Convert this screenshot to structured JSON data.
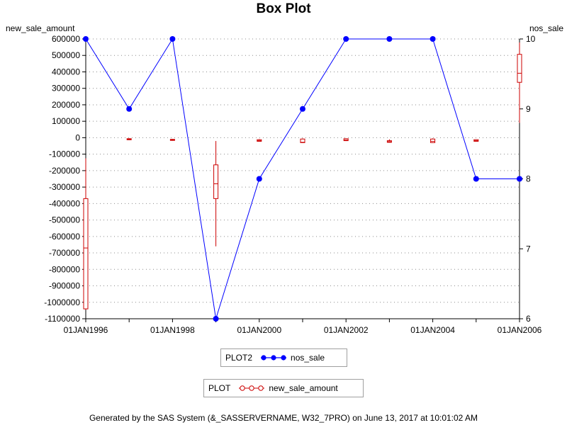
{
  "chart_data": {
    "type": "box",
    "title": "Box Plot",
    "left_axis_label": "new_sale_amount",
    "right_axis_label": "nos_sale",
    "x_tick_labels": [
      "01JAN1996",
      "01JAN1998",
      "01JAN2000",
      "01JAN2002",
      "01JAN2004",
      "01JAN2006"
    ],
    "x_categories": [
      "01JAN1996",
      "01JAN1997",
      "01JAN1998",
      "01JAN1999",
      "01JAN2000",
      "01JAN2001",
      "01JAN2002",
      "01JAN2003",
      "01JAN2004",
      "01JAN2005",
      "01JAN2006"
    ],
    "left_ylim": [
      -1100000,
      600000
    ],
    "left_ticks": [
      600000,
      500000,
      400000,
      300000,
      200000,
      100000,
      0,
      -100000,
      -200000,
      -300000,
      -400000,
      -500000,
      -600000,
      -700000,
      -800000,
      -900000,
      -1000000,
      -1100000
    ],
    "right_ylim": [
      6,
      10
    ],
    "right_ticks": [
      10,
      9,
      8,
      7,
      6
    ],
    "grid": true,
    "colors": {
      "line": "#0000ff",
      "box": "#cc0000",
      "grid": "#8c8c8c"
    },
    "series": [
      {
        "name": "nos_sale",
        "axis": "right",
        "kind": "line",
        "x": [
          "01JAN1996",
          "01JAN1997",
          "01JAN1998",
          "01JAN1999",
          "01JAN2000",
          "01JAN2001",
          "01JAN2002",
          "01JAN2003",
          "01JAN2004",
          "01JAN2005",
          "01JAN2006"
        ],
        "values": [
          10,
          9,
          10,
          6,
          8,
          9,
          10,
          10,
          10,
          8,
          8
        ]
      },
      {
        "name": "new_sale_amount",
        "axis": "left",
        "kind": "box",
        "boxes": [
          {
            "x": "01JAN1996",
            "min": -1045000,
            "q1": -1040000,
            "median": -670000,
            "q3": -370000,
            "max": -125000
          },
          {
            "x": "01JAN1997",
            "min": -14000,
            "q1": -12000,
            "median": -9000,
            "q3": -6000,
            "max": -4000
          },
          {
            "x": "01JAN1998",
            "min": -18000,
            "q1": -16000,
            "median": -13000,
            "q3": -10000,
            "max": -8000
          },
          {
            "x": "01JAN1999",
            "min": -660000,
            "q1": -370000,
            "median": -280000,
            "q3": -165000,
            "max": -20000
          },
          {
            "x": "01JAN2000",
            "min": -24000,
            "q1": -22000,
            "median": -18000,
            "q3": -12000,
            "max": -8000
          },
          {
            "x": "01JAN2001",
            "min": -32000,
            "q1": -30000,
            "median": -28000,
            "q3": -8000,
            "max": -4000
          },
          {
            "x": "01JAN2002",
            "min": -20000,
            "q1": -18000,
            "median": -14000,
            "q3": -6000,
            "max": -4000
          },
          {
            "x": "01JAN2003",
            "min": -30000,
            "q1": -28000,
            "median": -24000,
            "q3": -18000,
            "max": -10000
          },
          {
            "x": "01JAN2004",
            "min": -32000,
            "q1": -30000,
            "median": -22000,
            "q3": -8000,
            "max": -4000
          },
          {
            "x": "01JAN2005",
            "min": -24000,
            "q1": -22000,
            "median": -18000,
            "q3": -12000,
            "max": -10000
          }
        ],
        "right_axis_box": {
          "x": "01JAN2006",
          "min": 8.8,
          "q1": 9.38,
          "median": 9.51,
          "q3": 9.78,
          "max": 9.95
        }
      }
    ],
    "legend": [
      {
        "label": "PLOT2",
        "entry": "nos_sale"
      },
      {
        "label": "PLOT",
        "entry": "new_sale_amount"
      }
    ]
  },
  "footer": "Generated by the SAS System (&_SASSERVERNAME, W32_7PRO) on June 13, 2017 at 10:01:02 AM"
}
